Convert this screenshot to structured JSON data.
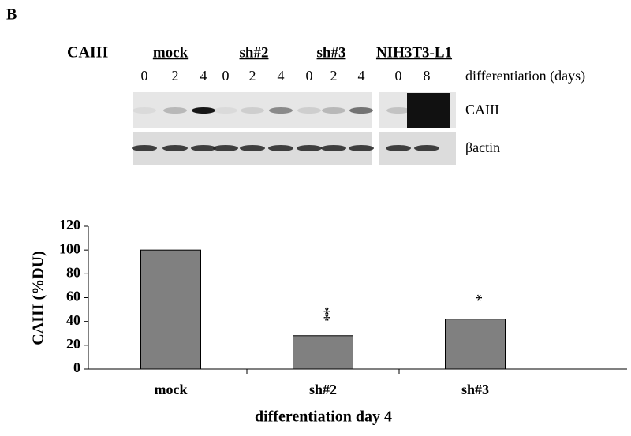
{
  "panel_label": "B",
  "blot": {
    "title": "CAIII",
    "groups": [
      {
        "label": "mock",
        "lanes": [
          "0",
          "2",
          "4"
        ]
      },
      {
        "label": "sh#2",
        "lanes": [
          "0",
          "2",
          "4"
        ]
      },
      {
        "label": "sh#3",
        "lanes": [
          "0",
          "2",
          "4"
        ]
      },
      {
        "label": "NIH3T3-L1",
        "lanes": [
          "0",
          "8"
        ]
      }
    ],
    "lane_axis_label": "differentiation (days)",
    "rows": [
      "CAIII",
      "βactin"
    ]
  },
  "chart_data": {
    "type": "bar",
    "categories": [
      "mock",
      "sh#2",
      "sh#3"
    ],
    "values": [
      100,
      28,
      42
    ],
    "annotations": [
      null,
      "**",
      "*"
    ],
    "color": "#808080",
    "ylim": [
      0,
      120
    ],
    "yticks": [
      0,
      20,
      40,
      60,
      80,
      100,
      120
    ],
    "ylabel": "CAIII (%DU)",
    "xlabel": "differentiation day 4"
  }
}
